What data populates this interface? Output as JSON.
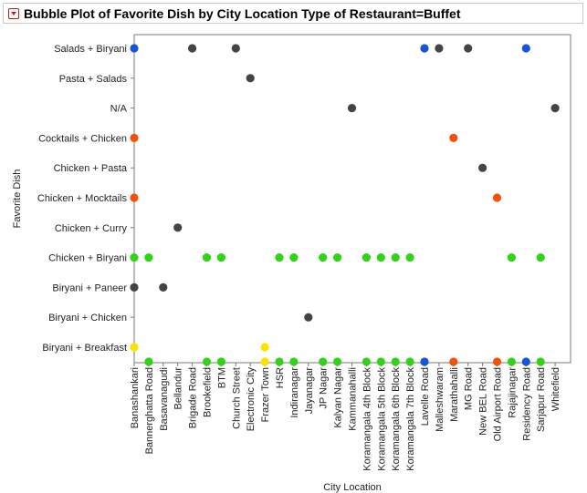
{
  "title": "Bubble Plot of Favorite Dish by City Location Type of Restaurant=Buffet",
  "colors": {
    "blue": "#1853d8",
    "gray": "#444444",
    "orange": "#f0520c",
    "green": "#33d11a",
    "yellow": "#ffe100",
    "frame": "#7a7a7a"
  },
  "chart_data": {
    "type": "scatter",
    "title": "Bubble Plot of Favorite Dish by City Location Type of Restaurant=Buffet",
    "xlabel": "City Location",
    "ylabel": "Favorite Dish",
    "grid": false,
    "legend": "none",
    "x_categories": [
      "Banashankari",
      "Bannerghatta Road",
      "Basavanagudi",
      "Bellandur",
      "Brigade Road",
      "Brookefield",
      "BTM",
      "Church Street",
      "Electronic City",
      "Frazer Town",
      "HSR",
      "Indiranagar",
      "Jayanagar",
      "JP Nagar",
      "Kalyan Nagar",
      "Kammanahalli",
      "Koramangala 4th Block",
      "Koramangala 5th Block",
      "Koramangala 6th Block",
      "Koramangala 7th Block",
      "Lavelle Road",
      "Malleshwaram",
      "Marathahalli",
      "MG Road",
      "New BEL Road",
      "Old Airport Road",
      "Rajajinagar",
      "Residency Road",
      "Sarjapur Road",
      "Whitefield"
    ],
    "y_categories": [
      "Salads + Biryani",
      "Pasta + Salads",
      "N/A",
      "Cocktails + Chicken",
      "Chicken + Pasta",
      "Chicken + Mocktails",
      "Chicken + Curry",
      "Chicken + Biryani",
      "Biryani + Paneer",
      "Biryani + Chicken",
      "Biryani + Breakfast"
    ],
    "points": [
      {
        "x": "Banashankari",
        "y": "Salads + Biryani",
        "color": "blue"
      },
      {
        "x": "Brigade Road",
        "y": "Salads + Biryani",
        "color": "gray"
      },
      {
        "x": "Church Street",
        "y": "Salads + Biryani",
        "color": "gray"
      },
      {
        "x": "Lavelle Road",
        "y": "Salads + Biryani",
        "color": "blue"
      },
      {
        "x": "Malleshwaram",
        "y": "Salads + Biryani",
        "color": "gray"
      },
      {
        "x": "MG Road",
        "y": "Salads + Biryani",
        "color": "gray"
      },
      {
        "x": "Residency Road",
        "y": "Salads + Biryani",
        "color": "blue"
      },
      {
        "x": "Electronic City",
        "y": "Pasta + Salads",
        "color": "gray"
      },
      {
        "x": "Kammanahalli",
        "y": "N/A",
        "color": "gray"
      },
      {
        "x": "Whitefield",
        "y": "N/A",
        "color": "gray"
      },
      {
        "x": "Banashankari",
        "y": "Cocktails + Chicken",
        "color": "orange"
      },
      {
        "x": "Marathahalli",
        "y": "Cocktails + Chicken",
        "color": "orange"
      },
      {
        "x": "New BEL Road",
        "y": "Chicken + Pasta",
        "color": "gray"
      },
      {
        "x": "Banashankari",
        "y": "Chicken + Mocktails",
        "color": "orange"
      },
      {
        "x": "Old Airport Road",
        "y": "Chicken + Mocktails",
        "color": "orange"
      },
      {
        "x": "Bellandur",
        "y": "Chicken + Curry",
        "color": "gray"
      },
      {
        "x": "Banashankari",
        "y": "Chicken + Biryani",
        "color": "green"
      },
      {
        "x": "Bannerghatta Road",
        "y": "Chicken + Biryani",
        "color": "green"
      },
      {
        "x": "Brookefield",
        "y": "Chicken + Biryani",
        "color": "green"
      },
      {
        "x": "BTM",
        "y": "Chicken + Biryani",
        "color": "green"
      },
      {
        "x": "HSR",
        "y": "Chicken + Biryani",
        "color": "green"
      },
      {
        "x": "Indiranagar",
        "y": "Chicken + Biryani",
        "color": "green"
      },
      {
        "x": "JP Nagar",
        "y": "Chicken + Biryani",
        "color": "green"
      },
      {
        "x": "Kalyan Nagar",
        "y": "Chicken + Biryani",
        "color": "green"
      },
      {
        "x": "Koramangala 4th Block",
        "y": "Chicken + Biryani",
        "color": "green"
      },
      {
        "x": "Koramangala 5th Block",
        "y": "Chicken + Biryani",
        "color": "green"
      },
      {
        "x": "Koramangala 6th Block",
        "y": "Chicken + Biryani",
        "color": "green"
      },
      {
        "x": "Koramangala 7th Block",
        "y": "Chicken + Biryani",
        "color": "green"
      },
      {
        "x": "Rajajinagar",
        "y": "Chicken + Biryani",
        "color": "green"
      },
      {
        "x": "Sarjapur Road",
        "y": "Chicken + Biryani",
        "color": "green"
      },
      {
        "x": "Banashankari",
        "y": "Biryani + Paneer",
        "color": "gray"
      },
      {
        "x": "Basavanagudi",
        "y": "Biryani + Paneer",
        "color": "gray"
      },
      {
        "x": "Jayanagar",
        "y": "Biryani + Chicken",
        "color": "gray"
      },
      {
        "x": "Banashankari",
        "y": "Biryani + Breakfast",
        "color": "yellow"
      },
      {
        "x": "Frazer Town",
        "y": "Biryani + Breakfast",
        "color": "yellow"
      },
      {
        "x": "Bannerghatta Road",
        "y": "bottom",
        "color": "green"
      },
      {
        "x": "Brookefield",
        "y": "bottom",
        "color": "green"
      },
      {
        "x": "BTM",
        "y": "bottom",
        "color": "green"
      },
      {
        "x": "Frazer Town",
        "y": "bottom",
        "color": "yellow"
      },
      {
        "x": "HSR",
        "y": "bottom",
        "color": "green"
      },
      {
        "x": "Indiranagar",
        "y": "bottom",
        "color": "green"
      },
      {
        "x": "JP Nagar",
        "y": "bottom",
        "color": "green"
      },
      {
        "x": "Kalyan Nagar",
        "y": "bottom",
        "color": "green"
      },
      {
        "x": "Koramangala 4th Block",
        "y": "bottom",
        "color": "green"
      },
      {
        "x": "Koramangala 5th Block",
        "y": "bottom",
        "color": "green"
      },
      {
        "x": "Koramangala 6th Block",
        "y": "bottom",
        "color": "green"
      },
      {
        "x": "Koramangala 7th Block",
        "y": "bottom",
        "color": "green"
      },
      {
        "x": "Lavelle Road",
        "y": "bottom",
        "color": "blue"
      },
      {
        "x": "Marathahalli",
        "y": "bottom",
        "color": "orange"
      },
      {
        "x": "Old Airport Road",
        "y": "bottom",
        "color": "orange"
      },
      {
        "x": "Rajajinagar",
        "y": "bottom",
        "color": "green"
      },
      {
        "x": "Residency Road",
        "y": "bottom",
        "color": "blue"
      },
      {
        "x": "Sarjapur Road",
        "y": "bottom",
        "color": "green"
      }
    ]
  }
}
